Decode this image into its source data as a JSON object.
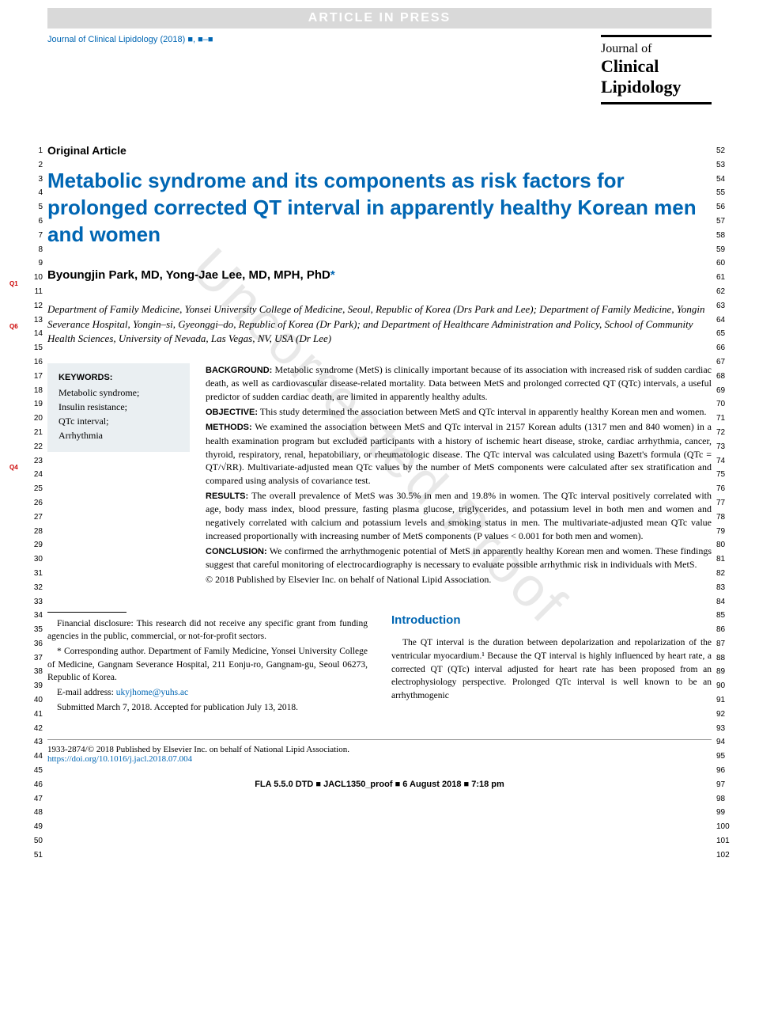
{
  "banner": "ARTICLE IN PRESS",
  "journal_cite": "Journal of Clinical Lipidology (2018) ■, ■–■",
  "journal_logo": {
    "l1": "Journal of",
    "l2": "Clinical",
    "l3": "Lipidology"
  },
  "article_type": "Original Article",
  "title": "Metabolic syndrome and its components as risk factors for prolonged corrected QT interval in apparently healthy Korean men and women",
  "authors": "Byoungjin Park, MD, Yong-Jae Lee, MD, MPH, PhD",
  "asterisk": "*",
  "affiliations": "Department of Family Medicine, Yonsei University College of Medicine, Seoul, Republic of Korea (Drs Park and Lee); Department of Family Medicine, Yongin Severance Hospital, Yongin–si, Gyeonggi–do, Republic of Korea (Dr Park); and Department of Healthcare Administration and Policy, School of Community Health Sciences, University of Nevada, Las Vegas, NV, USA (Dr Lee)",
  "keywords_head": "KEYWORDS:",
  "keywords": "Metabolic syndrome;\nInsulin resistance;\nQTc interval;\nArrhythmia",
  "abstract": {
    "background_label": "BACKGROUND:",
    "background": " Metabolic syndrome (MetS) is clinically important because of its association with increased risk of sudden cardiac death, as well as cardiovascular disease-related mortality. Data between MetS and prolonged corrected QT (QTc) intervals, a useful predictor of sudden cardiac death, are limited in apparently healthy adults.",
    "objective_label": "OBJECTIVE:",
    "objective": " This study determined the association between MetS and QTc interval in apparently healthy Korean men and women.",
    "methods_label": "METHODS:",
    "methods": " We examined the association between MetS and QTc interval in 2157 Korean adults (1317 men and 840 women) in a health examination program but excluded participants with a history of ischemic heart disease, stroke, cardiac arrhythmia, cancer, thyroid, respiratory, renal, hepatobiliary, or rheumatologic disease. The QTc interval was calculated using Bazett's formula (QTc = QT/√RR). Multivariate-adjusted mean QTc values by the number of MetS components were calculated after sex stratification and compared using analysis of covariance test.",
    "results_label": "RESULTS:",
    "results": " The overall prevalence of MetS was 30.5% in men and 19.8% in women. The QTc interval positively correlated with age, body mass index, blood pressure, fasting plasma glucose, triglycerides, and potassium level in both men and women and negatively correlated with calcium and potassium levels and smoking status in men. The multivariate-adjusted mean QTc value increased proportionally with increasing number of MetS components (P values < 0.001 for both men and women).",
    "conclusion_label": "CONCLUSION:",
    "conclusion": " We confirmed the arrhythmogenic potential of MetS in apparently healthy Korean men and women. These findings suggest that careful monitoring of electrocardiography is necessary to evaluate possible arrhythmic risk in individuals with MetS.",
    "copyright": "© 2018 Published by Elsevier Inc. on behalf of National Lipid Association."
  },
  "footnotes": {
    "f1": "Financial disclosure: This research did not receive any specific grant from funding agencies in the public, commercial, or not-for-profit sectors.",
    "f2": "* Corresponding author. Department of Family Medicine, Yonsei University College of Medicine, Gangnam Severance Hospital, 211 Eonju-ro, Gangnam-gu, Seoul 06273, Republic of Korea.",
    "email_label": "E-mail address: ",
    "email": "ukyjhome@yuhs.ac",
    "submitted": "Submitted March 7, 2018. Accepted for publication July 13, 2018."
  },
  "intro_head": "Introduction",
  "intro_text": "The QT interval is the duration between depolarization and repolarization of the ventricular myocardium.¹ Because the QT interval is highly influenced by heart rate, a corrected QT (QTc) interval adjusted for heart rate has been proposed from an electrophysiology perspective. Prolonged QTc interval is well known to be an arrhythmogenic",
  "issn_line": "1933-2874/© 2018 Published by Elsevier Inc. on behalf of National Lipid Association.",
  "doi": "https://doi.org/10.1016/j.jacl.2018.07.004",
  "proof_footer": "FLA 5.5.0 DTD ■ JACL1350_proof ■ 6 August 2018 ■ 7:18 pm",
  "watermark": "Uncorrected Proof",
  "q_tags": {
    "q1": "Q1",
    "q6": "Q6",
    "q4": "Q4"
  },
  "line_ranges": {
    "left_start": 1,
    "left_end": 51,
    "right_start": 52,
    "right_end": 102
  },
  "colors": {
    "blue": "#0066b3",
    "banner_bg": "#d9d9d9",
    "banner_fg": "#ffffff",
    "kw_bg": "#eaeff2",
    "red": "#cc0000",
    "watermark": "#e8e8e8"
  },
  "fonts": {
    "serif": "Times New Roman",
    "sans": "Arial",
    "title_size_pt": 20,
    "body_size_pt": 9,
    "abstract_size_pt": 9
  }
}
